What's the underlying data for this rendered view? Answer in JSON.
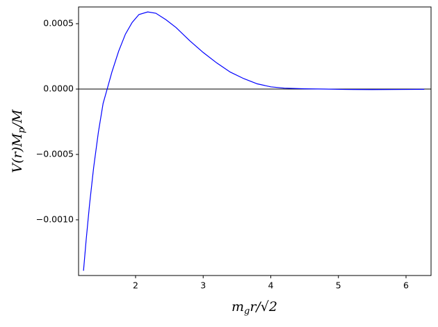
{
  "chart_data": {
    "type": "line",
    "xlabel": {
      "base": "m",
      "sub": "g",
      "rest": "r/√2"
    },
    "ylabel": {
      "base": "V(r)M",
      "sub": "p",
      "rest": "/M"
    },
    "x": [
      1.23,
      1.27,
      1.32,
      1.38,
      1.45,
      1.52,
      1.58,
      1.65,
      1.75,
      1.85,
      1.95,
      2.05,
      2.18,
      2.3,
      2.45,
      2.6,
      2.8,
      3.0,
      3.2,
      3.4,
      3.6,
      3.8,
      4.0,
      4.2,
      4.5,
      4.8,
      5.1,
      5.5,
      6.0,
      6.27
    ],
    "series": [
      {
        "name": "V",
        "color": "#0000ff",
        "values": [
          -0.00139,
          -0.00115,
          -0.00088,
          -0.0006,
          -0.00033,
          -0.00011,
          0.0,
          0.00013,
          0.00029,
          0.00042,
          0.00051,
          0.00057,
          0.00059,
          0.00058,
          0.00053,
          0.00047,
          0.00037,
          0.00028,
          0.0002,
          0.00013,
          8e-05,
          4e-05,
          1.7e-05,
          7e-06,
          2e-06,
          0.0,
          -3e-06,
          -4e-06,
          -3e-06,
          -2e-06
        ]
      }
    ],
    "xlim": [
      1.157,
      6.37
    ],
    "ylim": [
      -0.001426,
      0.000628
    ],
    "xticks": [
      2,
      3,
      4,
      5,
      6
    ],
    "yticks": [
      {
        "value": 0.0005,
        "label": "0.0005"
      },
      {
        "value": 0,
        "label": "0.0000"
      },
      {
        "value": -0.0005,
        "label": "−0.0005"
      },
      {
        "value": -0.001,
        "label": "−0.0010"
      }
    ],
    "hline": 0,
    "grid": false
  }
}
